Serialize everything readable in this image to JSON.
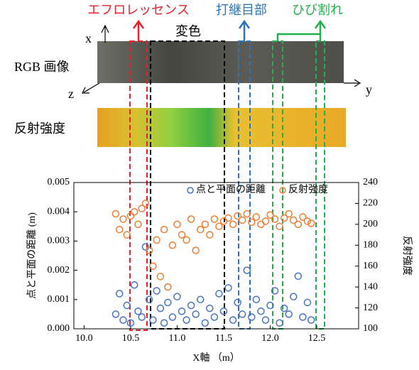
{
  "figure": {
    "efflorescence": "エフロレッセンス",
    "discoloration": "変色",
    "joint": "打継目部",
    "crack": "ひび割れ",
    "rgb_label": "RGB 画像",
    "reflect_label": "反射強度",
    "axis_x": "x",
    "axis_y": "y",
    "axis_z": "z"
  },
  "chart_data": {
    "type": "scatter",
    "x_label": "X軸 （m）",
    "y_label": "点と平面の距離 (m)",
    "y2_label": "反射強度",
    "x": [
      10.34,
      10.38,
      10.42,
      10.46,
      10.5,
      10.54,
      10.58,
      10.62,
      10.66,
      10.7,
      10.74,
      10.78,
      10.82,
      10.86,
      10.9,
      10.95,
      11.0,
      11.05,
      11.1,
      11.15,
      11.2,
      11.25,
      11.3,
      11.35,
      11.4,
      11.45,
      11.5,
      11.55,
      11.6,
      11.65,
      11.7,
      11.75,
      11.8,
      11.85,
      11.9,
      11.95,
      12.0,
      12.05,
      12.1,
      12.15,
      12.2,
      12.25,
      12.3,
      12.35,
      12.4,
      12.44
    ],
    "series": [
      {
        "name": "点と平面の距離",
        "color": "#4472c4",
        "values": [
          0.0005,
          0.0012,
          0.0003,
          0.0008,
          0.0002,
          0.0015,
          0.0006,
          0.0004,
          0.0028,
          0.001,
          0.0003,
          0.0013,
          0.0007,
          0.0002,
          0.0009,
          0.0004,
          0.0011,
          0.0006,
          0.0003,
          0.0008,
          0.0005,
          0.001,
          0.0002,
          0.0007,
          0.0004,
          0.0012,
          0.0006,
          0.0014,
          0.0003,
          0.0009,
          0.0005,
          0.002,
          0.0004,
          0.001,
          0.0006,
          0.0003,
          0.0008,
          0.0013,
          0.0002,
          0.0007,
          0.0005,
          0.0011,
          0.0018,
          0.0004,
          0.0009,
          0.0003
        ]
      },
      {
        "name": "反射強度",
        "color": "#ed7d31",
        "axis": "y2",
        "values": [
          210,
          195,
          205,
          190,
          208,
          212,
          200,
          215,
          220,
          175,
          160,
          185,
          150,
          195,
          140,
          180,
          200,
          190,
          185,
          205,
          175,
          195,
          200,
          190,
          205,
          198,
          203,
          206,
          200,
          208,
          204,
          210,
          202,
          207,
          200,
          203,
          209,
          205,
          198,
          206,
          210,
          204,
          200,
          207,
          203,
          201
        ]
      }
    ],
    "xlim": [
      9.89,
      12.95
    ],
    "xticks": [
      {
        "value": 10,
        "label": "10.0"
      },
      10.5,
      {
        "value": 11,
        "label": "11.0"
      },
      11.5,
      {
        "value": 12,
        "label": "12.0"
      },
      12.5
    ],
    "ylim": [
      0,
      0.005
    ],
    "yticks": [
      {
        "value": 0,
        "label": "0.000"
      },
      {
        "value": 0.001,
        "label": "0.001"
      },
      {
        "value": 0.002,
        "label": "0.002"
      },
      {
        "value": 0.003,
        "label": "0.003"
      },
      {
        "value": 0.004,
        "label": "0.004"
      },
      {
        "value": 0.005,
        "label": "0.005"
      }
    ],
    "y2lim": [
      100,
      240
    ],
    "y2ticks": [
      100,
      120,
      140,
      160,
      180,
      200,
      220,
      240
    ],
    "legend": "upper right"
  }
}
